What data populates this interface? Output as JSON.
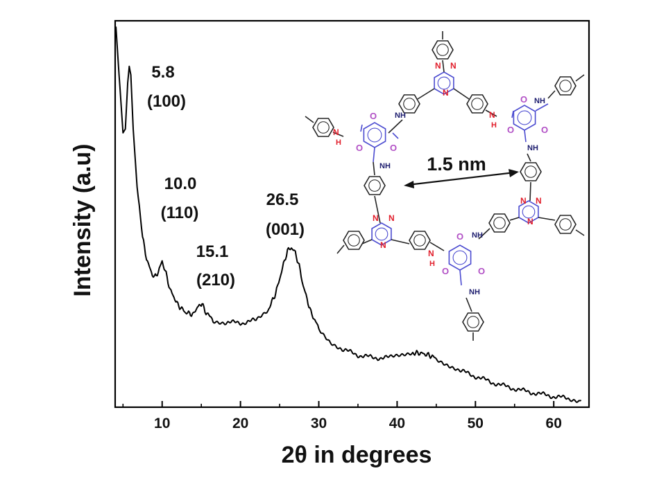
{
  "chart_data": {
    "type": "line",
    "title": "",
    "xlabel": "2θ in degrees",
    "ylabel": "Intensity (a.u)",
    "xlim": [
      4,
      64.5
    ],
    "ylim": [
      0,
      1
    ],
    "xticks": [
      "10",
      "20",
      "30",
      "40",
      "50",
      "60"
    ],
    "yticks": [],
    "grid": false,
    "legend": "none",
    "series": [
      {
        "color": "#000000",
        "x": [
          4.1,
          4.5,
          5.0,
          5.3,
          5.6,
          5.8,
          6.0,
          6.3,
          6.8,
          7.5,
          8.0,
          8.5,
          9.0,
          9.5,
          10.0,
          10.5,
          11.0,
          12.0,
          13.0,
          14.0,
          14.5,
          15.1,
          15.6,
          16.5,
          18.0,
          20.0,
          22.0,
          23.5,
          24.5,
          25.5,
          26.0,
          26.5,
          27.0,
          27.5,
          28.0,
          29.0,
          30.0,
          31.5,
          33.0,
          35.0,
          37.0,
          39.0,
          40.5,
          42.0,
          43.0,
          44.0,
          45.0,
          46.5,
          48.0,
          50.0,
          52.0,
          54.0,
          56.0,
          58.0,
          60.0,
          62.0,
          63.5
        ],
        "y": [
          0.985,
          0.86,
          0.71,
          0.72,
          0.84,
          0.882,
          0.86,
          0.72,
          0.57,
          0.44,
          0.385,
          0.355,
          0.335,
          0.35,
          0.378,
          0.345,
          0.305,
          0.265,
          0.245,
          0.24,
          0.26,
          0.267,
          0.245,
          0.225,
          0.22,
          0.218,
          0.225,
          0.25,
          0.295,
          0.37,
          0.405,
          0.413,
          0.4,
          0.365,
          0.315,
          0.245,
          0.205,
          0.17,
          0.15,
          0.135,
          0.128,
          0.128,
          0.133,
          0.14,
          0.14,
          0.135,
          0.127,
          0.11,
          0.095,
          0.08,
          0.065,
          0.053,
          0.043,
          0.035,
          0.028,
          0.022,
          0.018
        ]
      }
    ],
    "annotations": [
      {
        "value": "5.8",
        "index": "(100)"
      },
      {
        "value": "10.0",
        "index": "(110)"
      },
      {
        "value": "15.1",
        "index": "(210)"
      },
      {
        "value": "26.5",
        "index": "(001)"
      }
    ]
  },
  "inset": {
    "distance_label": "1.5 nm",
    "triazine_n": "N",
    "nh": "NH",
    "n": "N",
    "h": "H",
    "o": "O"
  }
}
